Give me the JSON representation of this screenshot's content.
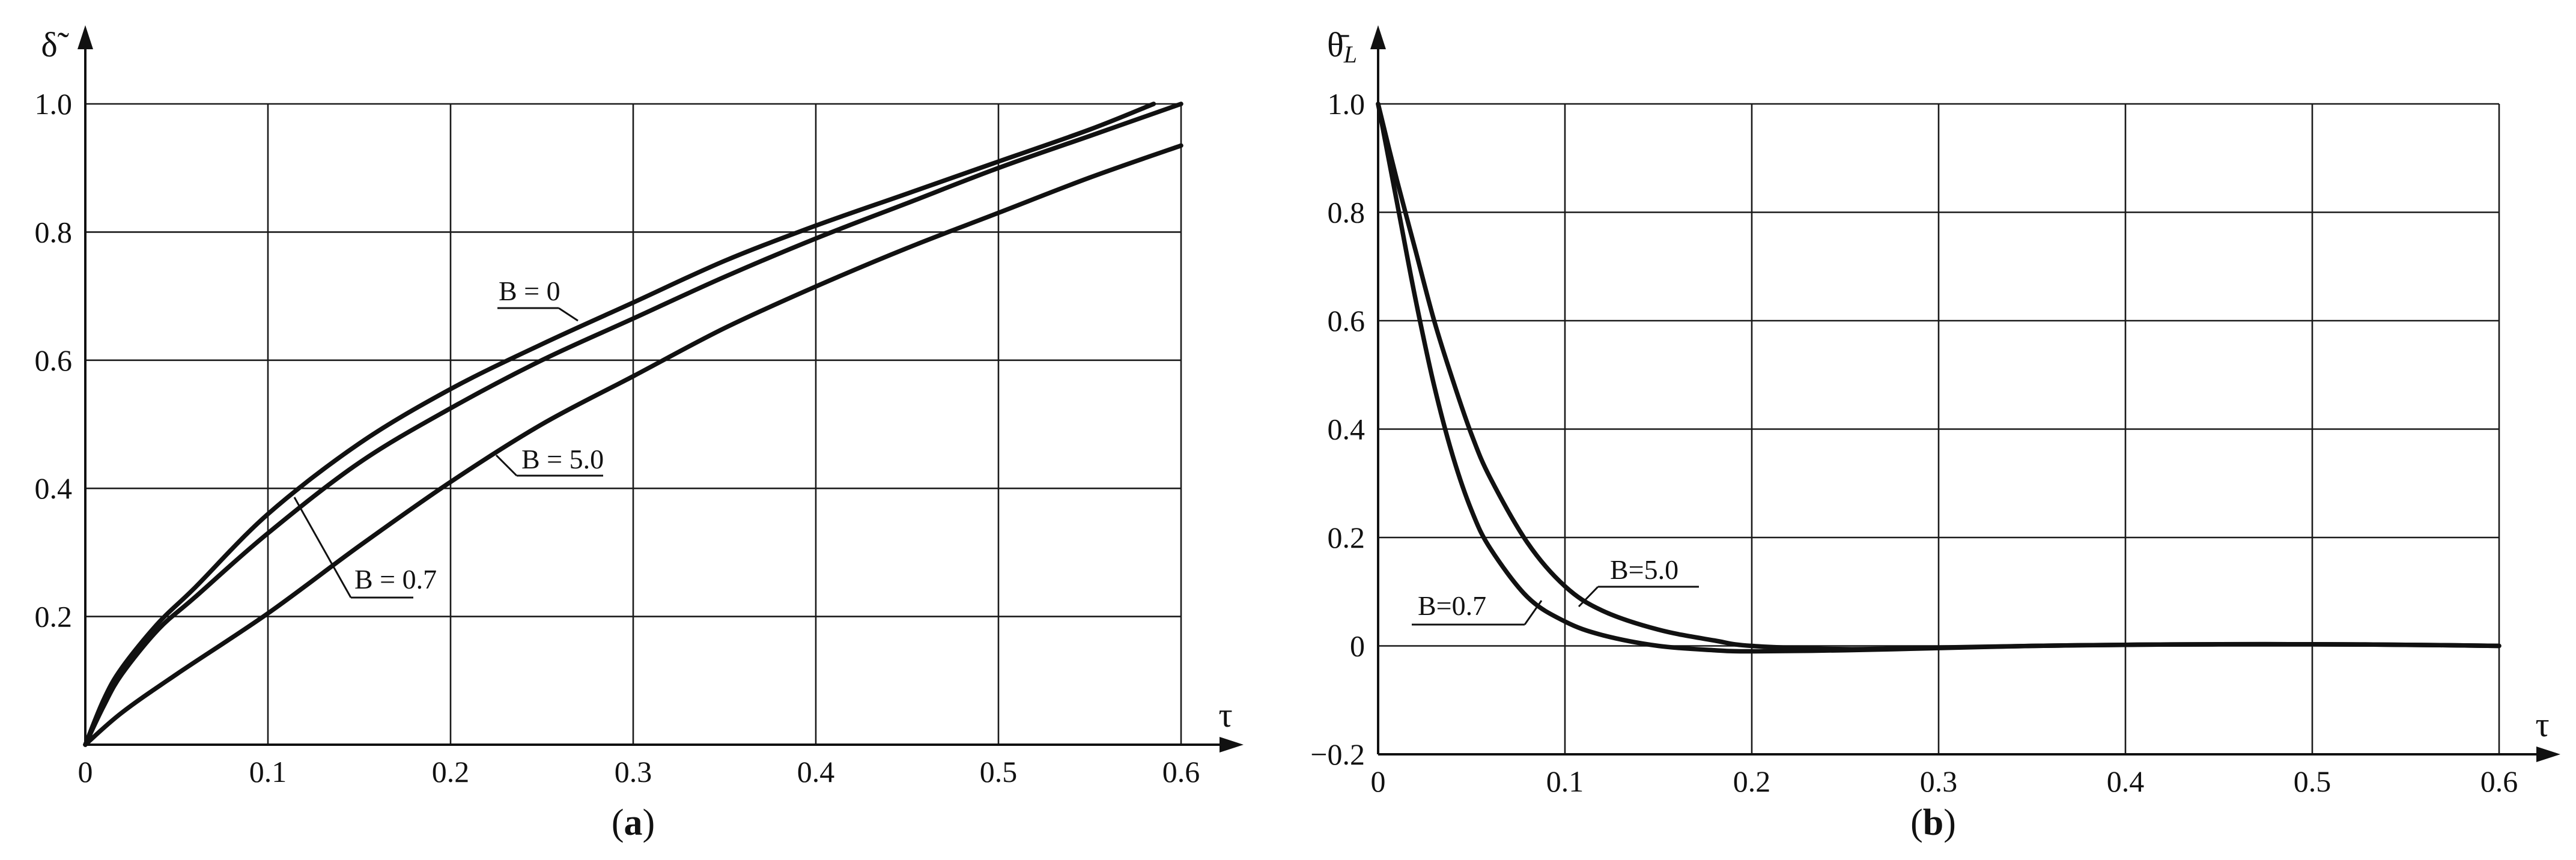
{
  "chart_data": [
    {
      "type": "line",
      "panel_label": "(a)",
      "xlabel": "τ",
      "ylabel": "δ̃",
      "xlim": [
        0,
        0.6
      ],
      "ylim": [
        0,
        1.0
      ],
      "xticks": [
        "0",
        "0.1",
        "0.2",
        "0.3",
        "0.4",
        "0.5",
        "0.6"
      ],
      "yticks": [
        "0.2",
        "0.4",
        "0.6",
        "0.8",
        "1.0"
      ],
      "grid": true,
      "series": [
        {
          "name": "B = 0",
          "x": [
            0,
            0.01,
            0.02,
            0.04,
            0.06,
            0.1,
            0.15,
            0.2,
            0.25,
            0.3,
            0.35,
            0.4,
            0.45,
            0.5,
            0.55,
            0.585
          ],
          "y": [
            0,
            0.07,
            0.12,
            0.19,
            0.245,
            0.36,
            0.47,
            0.555,
            0.625,
            0.69,
            0.755,
            0.81,
            0.86,
            0.91,
            0.96,
            1.0
          ]
        },
        {
          "name": "B = 0.7",
          "x": [
            0,
            0.01,
            0.02,
            0.04,
            0.06,
            0.1,
            0.15,
            0.2,
            0.25,
            0.3,
            0.35,
            0.4,
            0.45,
            0.5,
            0.55,
            0.6
          ],
          "y": [
            0,
            0.06,
            0.11,
            0.18,
            0.23,
            0.33,
            0.44,
            0.525,
            0.6,
            0.665,
            0.73,
            0.79,
            0.845,
            0.9,
            0.95,
            1.0
          ]
        },
        {
          "name": "B = 5.0",
          "x": [
            0,
            0.02,
            0.05,
            0.1,
            0.15,
            0.2,
            0.25,
            0.3,
            0.35,
            0.4,
            0.45,
            0.5,
            0.55,
            0.6
          ],
          "y": [
            0,
            0.05,
            0.11,
            0.205,
            0.31,
            0.41,
            0.5,
            0.575,
            0.65,
            0.715,
            0.775,
            0.83,
            0.885,
            0.935
          ]
        }
      ]
    },
    {
      "type": "line",
      "panel_label": "(b)",
      "xlabel": "τ",
      "ylabel": "θ̄L",
      "xlim": [
        0,
        0.6
      ],
      "ylim": [
        -0.2,
        1.0
      ],
      "xticks": [
        "0",
        "0.1",
        "0.2",
        "0.3",
        "0.4",
        "0.5",
        "0.6"
      ],
      "yticks": [
        "−0.2",
        "0",
        "0.2",
        "0.4",
        "0.6",
        "0.8",
        "1.0"
      ],
      "grid": true,
      "series": [
        {
          "name": "B=0.7",
          "x": [
            0,
            0.01,
            0.02,
            0.03,
            0.04,
            0.05,
            0.06,
            0.08,
            0.1,
            0.12,
            0.15,
            0.18,
            0.2,
            0.25,
            0.3,
            0.35,
            0.4,
            0.45,
            0.5,
            0.55,
            0.6
          ],
          "y": [
            1.0,
            0.82,
            0.64,
            0.48,
            0.35,
            0.25,
            0.18,
            0.09,
            0.045,
            0.02,
            0.0,
            -0.008,
            -0.01,
            -0.008,
            -0.004,
            0.0,
            0.002,
            0.003,
            0.003,
            0.002,
            0.0
          ]
        },
        {
          "name": "B=5.0",
          "x": [
            0,
            0.01,
            0.02,
            0.03,
            0.04,
            0.05,
            0.06,
            0.08,
            0.1,
            0.12,
            0.15,
            0.18,
            0.2,
            0.25,
            0.3,
            0.35,
            0.4,
            0.45,
            0.5,
            0.55,
            0.6
          ],
          "y": [
            1.0,
            0.86,
            0.73,
            0.6,
            0.49,
            0.39,
            0.31,
            0.19,
            0.11,
            0.065,
            0.03,
            0.01,
            0.0,
            -0.006,
            -0.003,
            0.0,
            0.002,
            0.003,
            0.003,
            0.002,
            0.0
          ]
        }
      ]
    }
  ]
}
